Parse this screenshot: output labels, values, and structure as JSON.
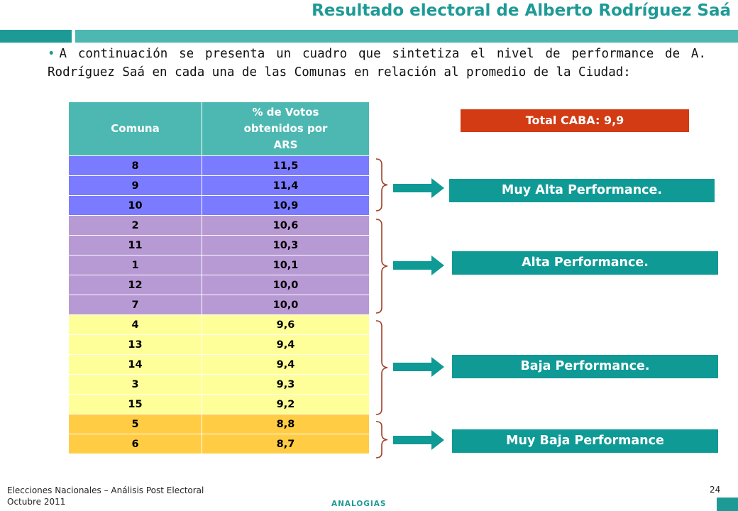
{
  "title": "Resultado electoral de Alberto Rodríguez Saá",
  "intro": "A continuación se presenta un cuadro que sintetiza el nivel de performance de A. Rodríguez Saá en cada una de las Comunas en relación al promedio de la Ciudad:",
  "colors": {
    "teal": "#1e9a96",
    "header_bg": "#4db8b2",
    "blue_band": "#7b7bff",
    "purple_band": "#b799d4",
    "yellow_band": "#ffff99",
    "orange_band": "#ffcc44",
    "total_bg": "#d23b13",
    "category_bg": "#0f9a96",
    "brace": "#a0402a"
  },
  "table": {
    "headers": [
      "Comuna",
      "% de Votos obtenidos por ARS"
    ],
    "rows": [
      {
        "comuna": "8",
        "votos": "11,5",
        "band": "blue"
      },
      {
        "comuna": "9",
        "votos": "11,4",
        "band": "blue"
      },
      {
        "comuna": "10",
        "votos": "10,9",
        "band": "blue"
      },
      {
        "comuna": "2",
        "votos": "10,6",
        "band": "purple"
      },
      {
        "comuna": "11",
        "votos": "10,3",
        "band": "purple"
      },
      {
        "comuna": "1",
        "votos": "10,1",
        "band": "purple"
      },
      {
        "comuna": "12",
        "votos": "10,0",
        "band": "purple"
      },
      {
        "comuna": "7",
        "votos": "10,0",
        "band": "purple"
      },
      {
        "comuna": "4",
        "votos": "9,6",
        "band": "yellow"
      },
      {
        "comuna": "13",
        "votos": "9,4",
        "band": "yellow"
      },
      {
        "comuna": "14",
        "votos": "9,4",
        "band": "yellow"
      },
      {
        "comuna": "3",
        "votos": "9,3",
        "band": "yellow"
      },
      {
        "comuna": "15",
        "votos": "9,2",
        "band": "yellow"
      },
      {
        "comuna": "5",
        "votos": "8,8",
        "band": "orange"
      },
      {
        "comuna": "6",
        "votos": "8,7",
        "band": "orange"
      }
    ]
  },
  "total_label": "Total CABA: 9,9",
  "categories": [
    {
      "label": "Muy Alta Performance."
    },
    {
      "label": "Alta Performance."
    },
    {
      "label": "Baja Performance."
    },
    {
      "label": "Muy Baja Performance"
    }
  ],
  "footer": {
    "line1": "Elecciones Nacionales – Análisis Post Electoral",
    "line2": "Octubre 2011",
    "brand": "ANALOGIAS",
    "page_number": "24"
  }
}
